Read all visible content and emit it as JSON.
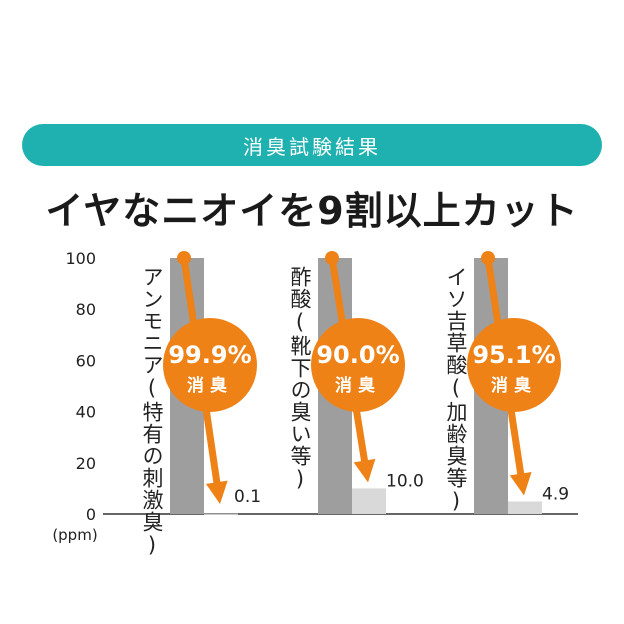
{
  "banner": {
    "label": "消臭試験結果",
    "color": "#1fb1b0"
  },
  "headline": {
    "text": "イヤなニオイを9割以上カット"
  },
  "colors": {
    "gray_bar": "#9e9e9e",
    "after_bar": "#d9d9d9",
    "orange": "#ee8217",
    "text": "#222222",
    "white": "#ffffff"
  },
  "chart_data": {
    "type": "bar",
    "title": "",
    "unit": "(ppm)",
    "ylim": [
      0,
      100
    ],
    "yticks": [
      "100",
      "80",
      "60",
      "40",
      "20",
      "0"
    ],
    "ytick_values": [
      100,
      80,
      60,
      40,
      20,
      0
    ],
    "groups": [
      {
        "name": "アンモニア(特有の刺激臭)",
        "before": 100,
        "after": 0.1,
        "after_label": "0.1",
        "reduction": "99.9%",
        "reduction_label": "消臭"
      },
      {
        "name": "酢酸(靴下の臭い等)",
        "before": 100,
        "after": 10.0,
        "after_label": "10.0",
        "reduction": "90.0%",
        "reduction_label": "消臭"
      },
      {
        "name": "イソ吉草酸(加齢臭等)",
        "before": 100,
        "after": 4.9,
        "after_label": "4.9",
        "reduction": "95.1%",
        "reduction_label": "消臭"
      }
    ]
  }
}
